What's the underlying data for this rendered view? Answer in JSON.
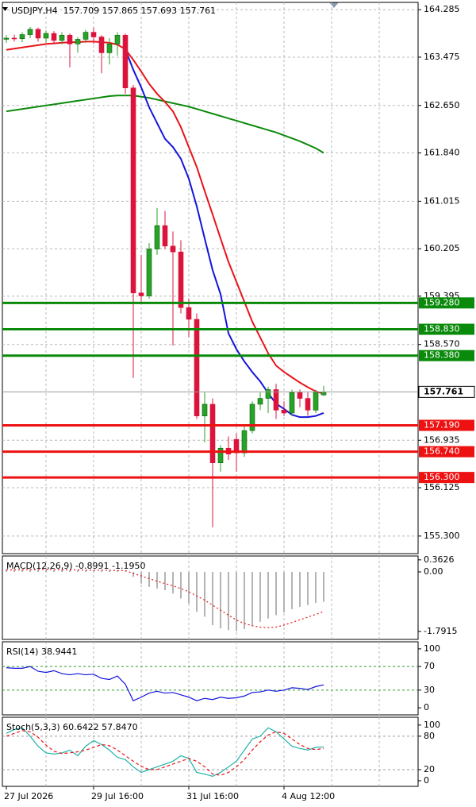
{
  "chart_data": [
    {
      "type": "candlestick",
      "title": "USDJPY,H4  157.709 157.865 157.693 157.761",
      "categories": [
        "27 Jul 2026",
        null,
        null,
        null,
        null,
        null,
        null,
        null,
        null,
        null,
        null,
        "29 Jul 16:00",
        null,
        null,
        null,
        null,
        null,
        null,
        null,
        null,
        null,
        null,
        null,
        "31 Jul 16:00",
        null,
        null,
        null,
        null,
        null,
        null,
        null,
        null,
        null,
        null,
        null,
        "4 Aug 12:00",
        null,
        null,
        null,
        null,
        null
      ],
      "open": [
        163.78,
        163.8,
        163.79,
        163.86,
        163.95,
        163.8,
        163.88,
        163.76,
        163.85,
        163.7,
        163.78,
        163.9,
        163.82,
        163.55,
        163.7,
        163.85,
        162.95,
        159.45,
        159.4,
        160.2,
        160.6,
        160.25,
        160.15,
        159.2,
        159.0,
        157.35,
        157.55,
        156.55,
        156.8,
        156.95,
        156.72,
        157.1,
        157.55,
        157.65,
        157.8,
        157.45,
        157.4,
        157.75,
        157.65,
        157.45,
        157.709
      ],
      "high": [
        163.85,
        163.86,
        163.9,
        163.99,
        163.98,
        163.93,
        163.92,
        163.9,
        163.88,
        163.82,
        163.94,
        163.98,
        163.85,
        163.8,
        163.9,
        163.88,
        163.0,
        160.1,
        160.3,
        160.9,
        160.85,
        160.5,
        160.35,
        159.35,
        159.1,
        157.75,
        157.65,
        156.85,
        157.0,
        157.05,
        157.2,
        157.6,
        157.75,
        157.85,
        157.9,
        157.6,
        157.8,
        157.8,
        157.75,
        157.8,
        157.865
      ],
      "low": [
        163.72,
        163.74,
        163.73,
        163.8,
        163.74,
        163.72,
        163.7,
        163.7,
        163.3,
        163.55,
        163.72,
        163.7,
        163.2,
        163.35,
        163.5,
        162.85,
        158.0,
        159.3,
        159.35,
        160.1,
        160.2,
        158.55,
        159.1,
        158.7,
        157.3,
        156.9,
        155.45,
        156.4,
        156.6,
        156.4,
        156.65,
        157.05,
        157.45,
        157.4,
        157.3,
        157.35,
        157.35,
        157.5,
        157.35,
        157.4,
        157.693
      ],
      "close": [
        163.8,
        163.79,
        163.86,
        163.95,
        163.8,
        163.88,
        163.76,
        163.85,
        163.7,
        163.78,
        163.9,
        163.82,
        163.55,
        163.7,
        163.85,
        162.95,
        159.45,
        159.4,
        160.2,
        160.6,
        160.25,
        160.15,
        159.2,
        159.0,
        157.35,
        157.55,
        156.55,
        156.8,
        156.7,
        156.72,
        157.1,
        157.55,
        157.65,
        157.8,
        157.45,
        157.4,
        157.75,
        157.65,
        157.45,
        157.75,
        157.761
      ],
      "up_color": "#27a327",
      "down_color": "#dc143c",
      "series": [
        {
          "kind": "line",
          "color": "#0c8a0c",
          "values": [
            162.55,
            162.57,
            162.59,
            162.61,
            162.63,
            162.65,
            162.67,
            162.69,
            162.71,
            162.73,
            162.75,
            162.77,
            162.79,
            162.81,
            162.82,
            162.82,
            162.82,
            162.8,
            162.78,
            162.75,
            162.72,
            162.69,
            162.66,
            162.63,
            162.59,
            162.55,
            162.51,
            162.47,
            162.43,
            162.39,
            162.35,
            162.31,
            162.27,
            162.23,
            162.19,
            162.14,
            162.09,
            162.04,
            161.98,
            161.92,
            161.84
          ]
        },
        {
          "kind": "line",
          "color": "#e8141a",
          "values": [
            163.6,
            163.62,
            163.64,
            163.66,
            163.68,
            163.7,
            163.71,
            163.72,
            163.73,
            163.73,
            163.74,
            163.74,
            163.73,
            163.72,
            163.69,
            163.61,
            163.43,
            163.23,
            163.02,
            162.85,
            162.71,
            162.55,
            162.28,
            161.94,
            161.6,
            161.19,
            160.79,
            160.38,
            159.98,
            159.64,
            159.3,
            158.96,
            158.69,
            158.42,
            158.21,
            158.1,
            158.01,
            157.92,
            157.84,
            157.77,
            157.73
          ]
        },
        {
          "kind": "line",
          "color": "#1414dc",
          "values": [
            null,
            null,
            null,
            null,
            null,
            null,
            null,
            null,
            null,
            null,
            null,
            null,
            null,
            null,
            null,
            163.61,
            163.26,
            162.96,
            162.62,
            162.35,
            162.08,
            161.94,
            161.74,
            161.4,
            160.93,
            160.38,
            159.84,
            159.43,
            158.76,
            158.49,
            158.28,
            158.1,
            157.94,
            157.74,
            157.56,
            157.47,
            157.37,
            157.33,
            157.33,
            157.35,
            157.4
          ]
        }
      ],
      "levels": [
        {
          "value": 159.28,
          "label": "159.280",
          "color": "#0a8a0a"
        },
        {
          "value": 158.83,
          "label": "158.830",
          "color": "#0a8a0a"
        },
        {
          "value": 158.38,
          "label": "158.380",
          "color": "#0a8a0a"
        },
        {
          "value": 157.19,
          "label": "157.190",
          "color": "#ee1111"
        },
        {
          "value": 156.74,
          "label": "156.740",
          "color": "#ee1111"
        },
        {
          "value": 156.3,
          "label": "156.300",
          "color": "#ee1111"
        }
      ],
      "current_price": 157.761,
      "ylim": [
        155.0,
        164.41
      ],
      "yticks": [
        164.285,
        163.475,
        {
          "value": 162.65,
          "label": "162.650"
        },
        {
          "value": 161.84,
          "label": "161.840"
        },
        161.015,
        160.205,
        159.395,
        {
          "value": 158.57,
          "label": "158.570"
        },
        156.935,
        156.125,
        {
          "value": 155.3,
          "label": "155.300"
        }
      ],
      "grid": true
    },
    {
      "type": "indicator",
      "title": "MACD(12,26,9) -0.8991 -1.1950",
      "series": [
        {
          "kind": "bar",
          "color": "#b4b4b4",
          "values": [
            0.08,
            0.07,
            0.07,
            0.08,
            0.07,
            0.07,
            0.06,
            0.06,
            0.05,
            0.05,
            0.05,
            0.05,
            0.04,
            0.04,
            0.04,
            0.02,
            -0.15,
            -0.35,
            -0.45,
            -0.5,
            -0.55,
            -0.65,
            -0.8,
            -0.95,
            -1.2,
            -1.35,
            -1.6,
            -1.7,
            -1.75,
            -1.78,
            -1.72,
            -1.62,
            -1.5,
            -1.4,
            -1.3,
            -1.22,
            -1.12,
            -1.05,
            -1.0,
            -0.93,
            -0.8991
          ]
        },
        {
          "kind": "dotted",
          "color": "#e8141a",
          "values": [
            0.06,
            0.06,
            0.06,
            0.07,
            0.07,
            0.07,
            0.07,
            0.06,
            0.06,
            0.06,
            0.05,
            0.05,
            0.05,
            0.05,
            0.04,
            0.04,
            -0.05,
            -0.12,
            -0.2,
            -0.28,
            -0.35,
            -0.42,
            -0.5,
            -0.6,
            -0.72,
            -0.85,
            -1.0,
            -1.15,
            -1.3,
            -1.45,
            -1.55,
            -1.62,
            -1.66,
            -1.68,
            -1.66,
            -1.6,
            -1.52,
            -1.44,
            -1.36,
            -1.28,
            -1.195
          ]
        }
      ],
      "ylim": [
        -2.03,
        0.478
      ],
      "yticks": [
        0.3626,
        {
          "value": 0,
          "label": "0.00"
        },
        -1.7915
      ],
      "grid": false
    },
    {
      "type": "indicator",
      "title": "RSI(14) 38.9441",
      "series": [
        {
          "kind": "line",
          "color": "#1414dc",
          "values": [
            68,
            67,
            67,
            70,
            62,
            60,
            63,
            58,
            56,
            58,
            56,
            57,
            50,
            48,
            54,
            40,
            12,
            18,
            25,
            28,
            25,
            26,
            22,
            18,
            12,
            16,
            14,
            18,
            16,
            17,
            20,
            26,
            27,
            30,
            28,
            30,
            34,
            33,
            31,
            36,
            38.9441
          ]
        }
      ],
      "ylim": [
        -12,
        112
      ],
      "yticks": [
        100,
        70,
        30,
        0
      ],
      "grid": true,
      "grid_color": "#2e9e2e"
    },
    {
      "type": "indicator",
      "title": "Stoch(5,3,3) 60.6422 57.8470",
      "series": [
        {
          "kind": "line",
          "color": "#20b2aa",
          "values": [
            85,
            92,
            95,
            80,
            62,
            50,
            48,
            50,
            55,
            45,
            62,
            72,
            65,
            55,
            42,
            38,
            25,
            15,
            20,
            25,
            30,
            35,
            45,
            40,
            15,
            12,
            8,
            15,
            25,
            35,
            55,
            75,
            80,
            95,
            88,
            75,
            62,
            58,
            55,
            60,
            60.6422
          ]
        },
        {
          "kind": "dashed",
          "color": "#e8141a",
          "values": [
            80,
            85,
            90,
            88,
            78,
            64,
            53,
            49,
            50,
            52,
            55,
            60,
            65,
            63,
            55,
            45,
            35,
            26,
            20,
            20,
            25,
            30,
            35,
            40,
            35,
            25,
            12,
            10,
            15,
            25,
            38,
            55,
            70,
            82,
            88,
            85,
            75,
            65,
            58,
            56,
            57.847
          ]
        }
      ],
      "ylim": [
        -10,
        114
      ],
      "yticks": [
        100,
        80,
        20,
        0
      ],
      "grid": true,
      "grid_color": "#9a9a9a"
    }
  ]
}
